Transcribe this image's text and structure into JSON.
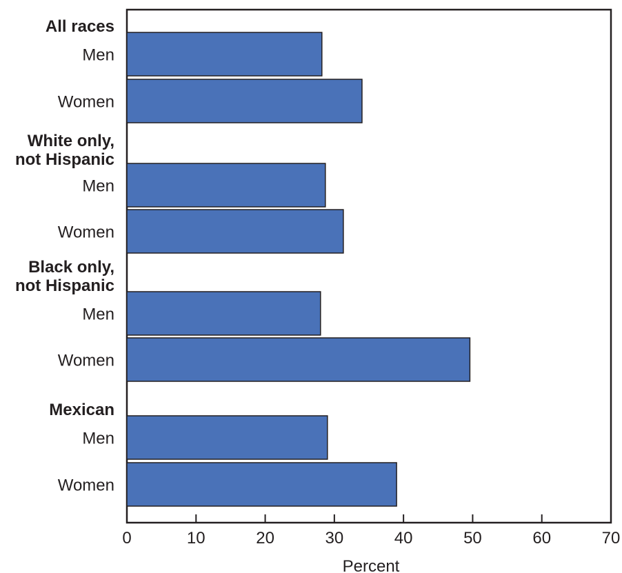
{
  "chart_data": {
    "type": "bar",
    "orientation": "horizontal",
    "groups": [
      {
        "label_lines": [
          "All races"
        ],
        "bars": [
          {
            "label": "Men",
            "value": 28.2
          },
          {
            "label": "Women",
            "value": 34.0
          }
        ]
      },
      {
        "label_lines": [
          "White only,",
          "not Hispanic"
        ],
        "bars": [
          {
            "label": "Men",
            "value": 28.7
          },
          {
            "label": "Women",
            "value": 31.3
          }
        ]
      },
      {
        "label_lines": [
          "Black only,",
          "not Hispanic"
        ],
        "bars": [
          {
            "label": "Men",
            "value": 28.0
          },
          {
            "label": "Women",
            "value": 49.6
          }
        ]
      },
      {
        "label_lines": [
          "Mexican"
        ],
        "bars": [
          {
            "label": "Men",
            "value": 29.0
          },
          {
            "label": "Women",
            "value": 39.0
          }
        ]
      }
    ],
    "xlabel": "Percent",
    "xlim": [
      0,
      70
    ],
    "xticks": [
      0,
      10,
      20,
      30,
      40,
      50,
      60,
      70
    ],
    "grid": false,
    "legend": "none",
    "colors": {
      "bar": "#4a72b8",
      "stroke": "#231f20",
      "frame": "#231f20"
    }
  }
}
